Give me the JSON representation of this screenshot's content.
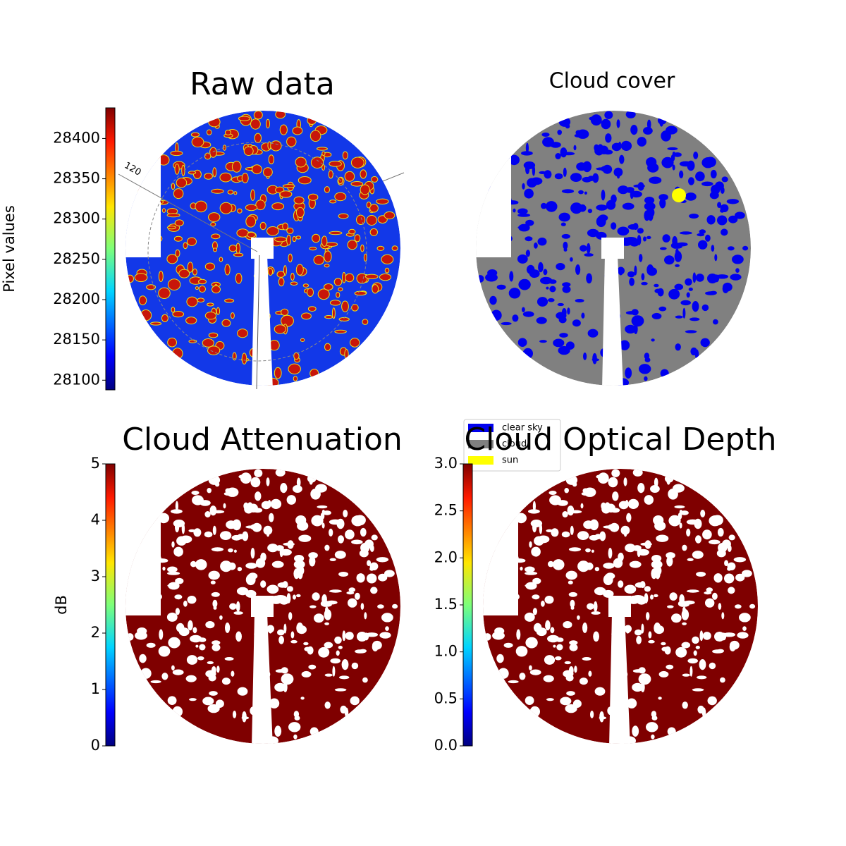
{
  "chart_data": [
    {
      "type": "image",
      "title": "Raw data",
      "image_colors": [
        "#1238e8",
        "#c8160a",
        "#e8e020"
      ],
      "annotations": [
        "120"
      ],
      "colorbar": {
        "label": "Pixel values",
        "colormap": "jet",
        "ylim": [
          28088,
          28438
        ],
        "yticks": [
          28100,
          28150,
          28200,
          28250,
          28300,
          28350,
          28400
        ]
      }
    },
    {
      "type": "image",
      "title": "Cloud cover",
      "image_colors": [
        "#808080",
        "#0000ee"
      ],
      "legend": [
        {
          "name": "clear sky",
          "color": "#0000ee"
        },
        {
          "name": "cloud",
          "color": "#808080"
        },
        {
          "name": "sun",
          "color": "#ffff00"
        }
      ]
    },
    {
      "type": "image",
      "title": "Cloud Attenuation",
      "image_colors": [
        "#7f0000",
        "#ffffff"
      ],
      "colorbar": {
        "label": "dB",
        "colormap": "jet",
        "ylim": [
          0,
          5
        ],
        "yticks": [
          0,
          1,
          2,
          3,
          4,
          5
        ]
      }
    },
    {
      "type": "image",
      "title": "Cloud Optical Depth",
      "image_colors": [
        "#7f0000",
        "#ffffff"
      ],
      "colorbar": {
        "colormap": "jet",
        "ylim": [
          0,
          3
        ],
        "yticks": [
          {
            "value": 0,
            "label": "0.0"
          },
          {
            "value": 0.5,
            "label": "0.5"
          },
          {
            "value": 1,
            "label": "1.0"
          },
          {
            "value": 1.5,
            "label": "1.5"
          },
          {
            "value": 2,
            "label": "2.0"
          },
          {
            "value": 2.5,
            "label": "2.5"
          },
          {
            "value": 3,
            "label": "3.0"
          }
        ]
      }
    }
  ]
}
